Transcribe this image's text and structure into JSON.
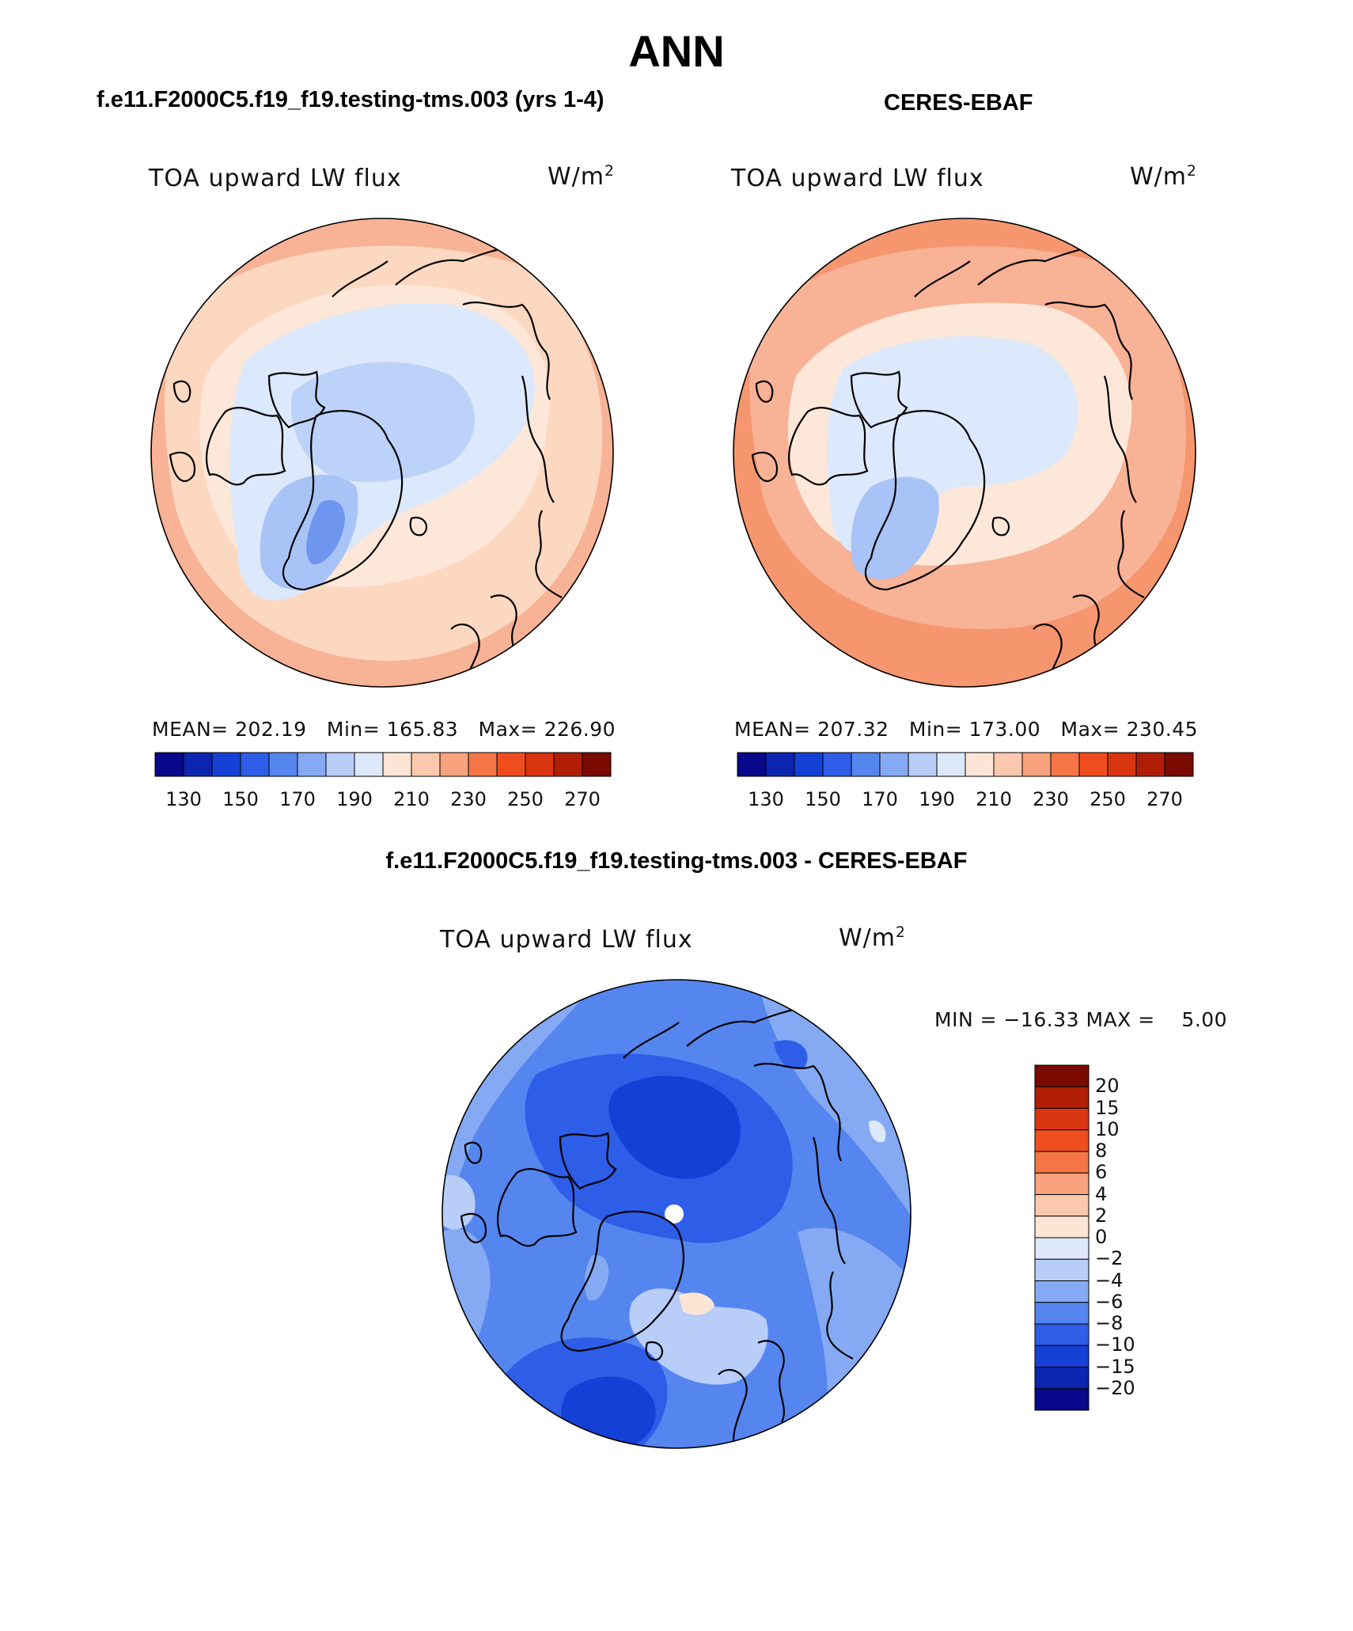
{
  "title": "ANN",
  "panels": {
    "model": {
      "title": "f.e11.F2000C5.f19_f19.testing-tms.003 (yrs 1-4)",
      "variable": "TOA upward LW flux",
      "units_base": "W/m",
      "units_exp": "2",
      "mean_label": "MEAN=",
      "mean": "202.19",
      "min_label": "Min=",
      "min": "165.83",
      "max_label": "Max=",
      "max": "226.90"
    },
    "obs": {
      "title": "CERES-EBAF",
      "variable": "TOA upward LW flux",
      "units_base": "W/m",
      "units_exp": "2",
      "mean_label": "MEAN=",
      "mean": "207.32",
      "min_label": "Min=",
      "min": "173.00",
      "max_label": "Max=",
      "max": "230.45"
    },
    "diff": {
      "title": "f.e11.F2000C5.f19_f19.testing-tms.003 - CERES-EBAF",
      "variable": "TOA upward LW flux",
      "units_base": "W/m",
      "units_exp": "2",
      "minmax_text": "MIN = −16.33 MAX =    5.00"
    }
  },
  "colorbar_abs": {
    "tick_labels": [
      "130",
      "150",
      "170",
      "190",
      "210",
      "230",
      "250",
      "270"
    ],
    "colors": [
      "#08088a",
      "#0d24b0",
      "#1540d6",
      "#2e5de8",
      "#5585ee",
      "#85aaf3",
      "#b8cdf8",
      "#dde9fb",
      "#fde5d5",
      "#fbc8ad",
      "#f8a27e",
      "#f57547",
      "#f04d1e",
      "#d93510",
      "#b01f05",
      "#7a0a00"
    ]
  },
  "colorbar_diff": {
    "tick_labels": [
      "20",
      "15",
      "10",
      "8",
      "6",
      "4",
      "2",
      "0",
      "−2",
      "−4",
      "−6",
      "−8",
      "−10",
      "−15",
      "−20"
    ],
    "colors": [
      "#7a0a00",
      "#b01f05",
      "#d93510",
      "#f04d1e",
      "#f57547",
      "#f8a27e",
      "#fbc8ad",
      "#fde5d5",
      "#dde9fb",
      "#b8cdf8",
      "#85aaf3",
      "#5585ee",
      "#2e5de8",
      "#1540d6",
      "#0d24b0",
      "#08088a"
    ]
  }
}
